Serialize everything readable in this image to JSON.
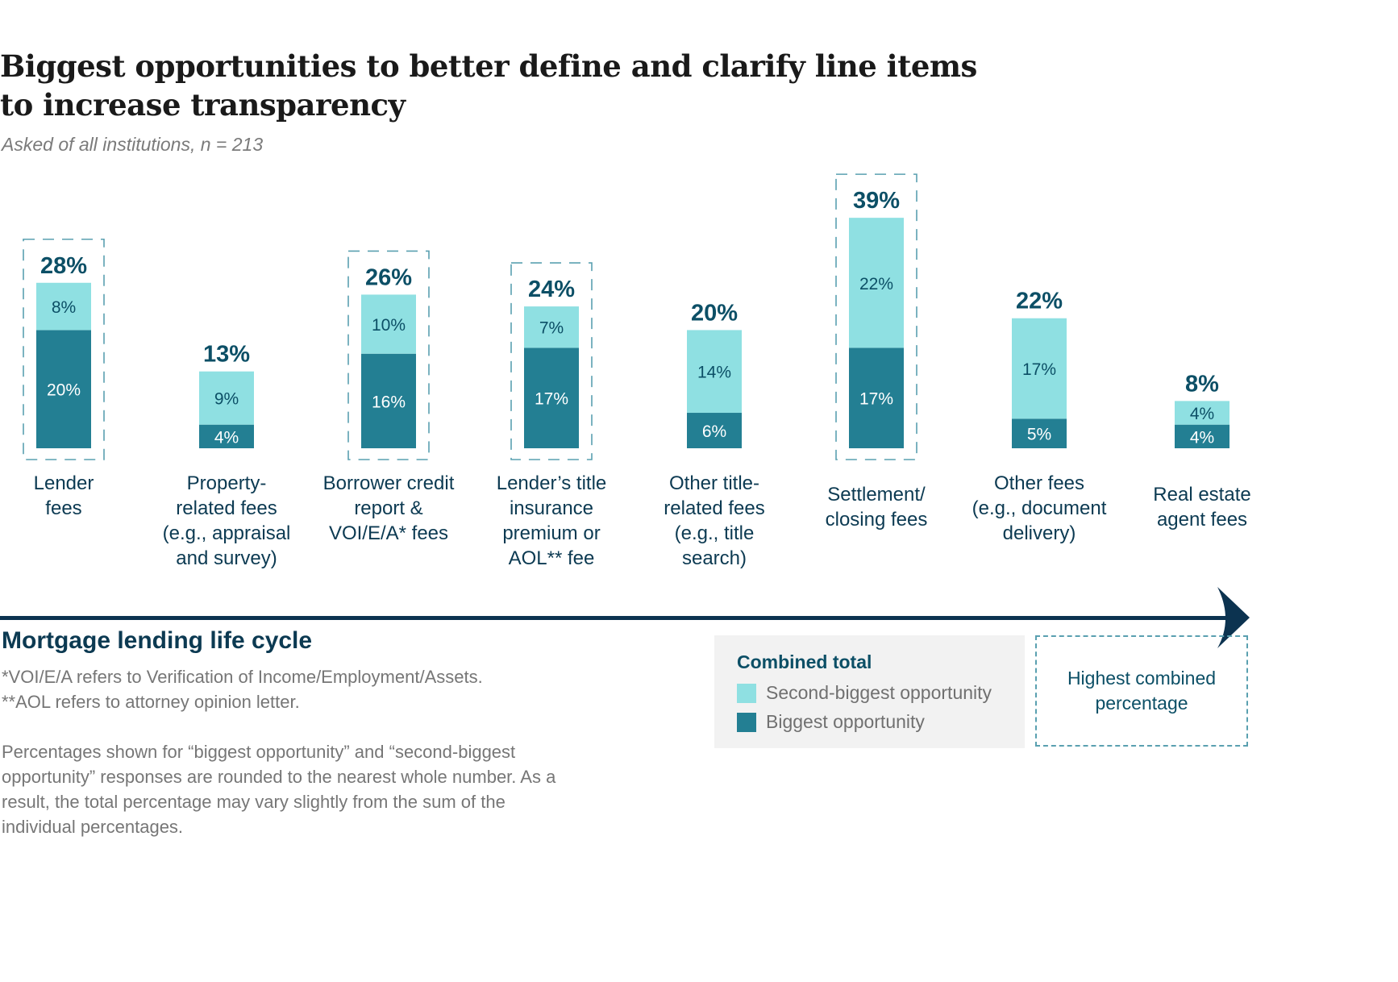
{
  "title": "Biggest opportunities to better define and clarify line items\nto increase transparency",
  "title_line1": "Biggest opportunities to better define and clarify line items",
  "title_line2": "to increase transparency",
  "subtitle": "Asked of all institutions, n = 213",
  "axis_title": "Mortgage lending life cycle",
  "footnotes": [
    "*VOI/E/A refers to Verification of Income/Employment/Assets.",
    "**AOL refers to attorney opinion letter."
  ],
  "note": "Percentages shown for “biggest opportunity” and “second-biggest opportunity” responses are rounded to the nearest whole number. As a result, the total percentage may vary slightly from the sum of the individual percentages.",
  "legend": {
    "title": "Combined total",
    "items": [
      {
        "label": "Second-biggest opportunity",
        "color": "#8fe0e2"
      },
      {
        "label": "Biggest opportunity",
        "color": "#237f93"
      }
    ],
    "highlight_label": "Highest combined\npercentage"
  },
  "colors": {
    "biggest": "#237f93",
    "second": "#8fe0e2",
    "total_label": "#0c4f66",
    "dashed": "#5aa0b0",
    "axis": "#0c3350"
  },
  "chart_data": {
    "type": "bar",
    "stacked": true,
    "title": "Biggest opportunities to better define and clarify line items to increase transparency",
    "subtitle": "Asked of all institutions, n = 213",
    "xlabel": "Mortgage lending life cycle",
    "ylabel": "",
    "ylim": [
      0,
      40
    ],
    "grid": false,
    "legend_position": "bottom-right",
    "categories": [
      "Lender\nfees",
      "Property-\nrelated fees\n(e.g., appraisal\nand survey)",
      "Borrower credit\nreport &\nVOI/E/A* fees",
      "Lender’s title\ninsurance\npremium or\nAOL** fee",
      "Other title-\nrelated fees\n(e.g., title\nsearch)",
      "Settlement/\nclosing fees",
      "Other fees\n(e.g., document\ndelivery)",
      "Real estate\nagent fees"
    ],
    "series": [
      {
        "name": "Biggest opportunity",
        "values": [
          20,
          4,
          16,
          17,
          6,
          17,
          5,
          4
        ]
      },
      {
        "name": "Second-biggest opportunity",
        "values": [
          8,
          9,
          10,
          7,
          14,
          22,
          17,
          4
        ]
      }
    ],
    "totals": [
      28,
      13,
      26,
      24,
      20,
      39,
      22,
      8
    ],
    "highlighted": [
      true,
      false,
      true,
      true,
      false,
      true,
      false,
      false
    ]
  }
}
